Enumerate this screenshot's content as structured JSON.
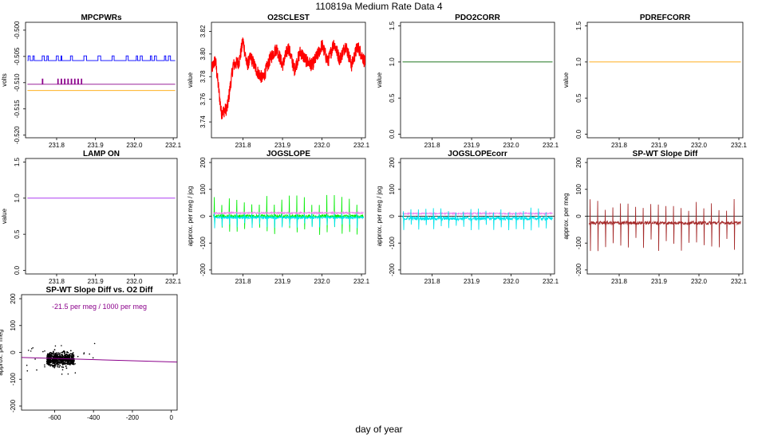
{
  "figure": {
    "title": "110819a   Medium Rate Data 4",
    "xlabel": "day of year"
  },
  "chart_data": [
    {
      "id": "mpcpwrs",
      "type": "line",
      "title": "MPCPWRs",
      "ylabel": "volts",
      "xlim": [
        231.72,
        232.11
      ],
      "ylim": [
        -0.5205,
        -0.4985
      ],
      "xticks": [
        "231.8",
        "231.9",
        "232.0",
        "232.1"
      ],
      "yticks": [
        "-0.500",
        "-0.505",
        "-0.510",
        "-0.515",
        "-0.520"
      ],
      "ytick_values": [
        -0.5,
        -0.505,
        -0.51,
        -0.515,
        -0.52
      ],
      "series": [
        {
          "color": "#0000ff",
          "base": -0.5058,
          "spike": -0.5049,
          "kind": "blocks",
          "x_from": 231.72,
          "x_to": 232.11
        },
        {
          "color": "#8b008b",
          "base": -0.5103,
          "spike": -0.5093,
          "kind": "ticks",
          "x_from": 231.72,
          "x_to": 232.11
        },
        {
          "color": "#ffa500",
          "base": -0.5115,
          "kind": "flat",
          "x_from": 231.72,
          "x_to": 232.11
        }
      ]
    },
    {
      "id": "o2sclest",
      "type": "line",
      "title": "O2SCLEST",
      "ylabel": "value",
      "xlim": [
        231.72,
        232.11
      ],
      "ylim": [
        3.726,
        3.828
      ],
      "xticks": [
        "231.8",
        "231.9",
        "232.0",
        "232.1"
      ],
      "yticks": [
        "3.74",
        "3.76",
        "3.78",
        "3.80",
        "3.82"
      ],
      "ytick_values": [
        3.74,
        3.76,
        3.78,
        3.8,
        3.82
      ],
      "series": [
        {
          "color": "#ff0000",
          "kind": "noisy",
          "x": [
            231.72,
            231.73,
            231.745,
            231.76,
            231.775,
            231.79,
            231.8,
            231.81,
            231.82,
            231.835,
            231.85,
            231.87,
            231.885,
            231.9,
            231.915,
            231.93,
            231.945,
            231.96,
            231.975,
            231.99,
            232.0,
            232.015,
            232.03,
            232.045,
            232.06,
            232.075,
            232.09,
            232.11
          ],
          "y": [
            3.786,
            3.795,
            3.748,
            3.752,
            3.79,
            3.793,
            3.812,
            3.79,
            3.797,
            3.785,
            3.778,
            3.797,
            3.805,
            3.79,
            3.806,
            3.786,
            3.802,
            3.794,
            3.79,
            3.8,
            3.808,
            3.793,
            3.81,
            3.795,
            3.808,
            3.79,
            3.807,
            3.792
          ]
        }
      ]
    },
    {
      "id": "pdo2corr",
      "type": "line",
      "title": "PDO2CORR",
      "ylabel": "value",
      "xlim": [
        231.72,
        232.11
      ],
      "ylim": [
        -0.05,
        1.55
      ],
      "xticks": [
        "231.8",
        "231.9",
        "232.0",
        "232.1"
      ],
      "yticks": [
        "0.0",
        "0.5",
        "1.0",
        "1.5"
      ],
      "ytick_values": [
        0,
        0.5,
        1.0,
        1.5
      ],
      "series": [
        {
          "color": "#006400",
          "kind": "flat",
          "base": 1.0,
          "x_from": 231.72,
          "x_to": 232.11
        }
      ]
    },
    {
      "id": "pdrefcorr",
      "type": "line",
      "title": "PDREFCORR",
      "ylabel": "value",
      "xlim": [
        231.72,
        232.11
      ],
      "ylim": [
        -0.05,
        1.55
      ],
      "xticks": [
        "231.8",
        "231.9",
        "232.0",
        "232.1"
      ],
      "yticks": [
        "0.0",
        "0.5",
        "1.0",
        "1.5"
      ],
      "ytick_values": [
        0,
        0.5,
        1.0,
        1.5
      ],
      "series": [
        {
          "color": "#ffa500",
          "kind": "flat",
          "base": 1.0,
          "x_from": 231.72,
          "x_to": 232.11
        }
      ]
    },
    {
      "id": "lampon",
      "type": "line",
      "title": "LAMP ON",
      "ylabel": "value",
      "xlim": [
        231.72,
        232.11
      ],
      "ylim": [
        -0.05,
        1.55
      ],
      "xticks": [
        "231.8",
        "231.9",
        "232.0",
        "232.1"
      ],
      "yticks": [
        "0.0",
        "0.5",
        "1.0",
        "1.5"
      ],
      "ytick_values": [
        0,
        0.5,
        1.0,
        1.5
      ],
      "series": [
        {
          "color": "#a020f0",
          "kind": "flat",
          "base": 1.0,
          "x_from": 231.72,
          "x_to": 232.11
        }
      ]
    },
    {
      "id": "jogslope",
      "type": "line",
      "title": "JOGSLOPE",
      "ylabel": "approx. per meg / jog",
      "xlim": [
        231.72,
        232.11
      ],
      "ylim": [
        -215,
        215
      ],
      "xticks": [
        "231.8",
        "231.9",
        "232.0",
        "232.1"
      ],
      "yticks": [
        "-200",
        "-100",
        "0",
        "100",
        "200"
      ],
      "ytick_values": [
        -200,
        -100,
        0,
        100,
        200
      ],
      "series": [
        {
          "color": "#00ee00",
          "kind": "spiky",
          "base": 0,
          "noise": 6,
          "spike_up": 80,
          "spike_down": -70
        },
        {
          "color": "#00e5ee",
          "kind": "spiky",
          "base": -5,
          "noise": 4,
          "spike_up": 20,
          "spike_down": -40
        },
        {
          "color": "#ee82ee",
          "kind": "noise",
          "base": 12,
          "noise": 3
        }
      ]
    },
    {
      "id": "jogslopecorr",
      "type": "line",
      "title": "JOGSLOPEcorr",
      "ylabel": "approx. per meg / jog",
      "xlim": [
        231.72,
        232.11
      ],
      "ylim": [
        -215,
        215
      ],
      "xticks": [
        "231.8",
        "231.9",
        "232.0",
        "232.1"
      ],
      "yticks": [
        "-200",
        "-100",
        "0",
        "100",
        "200"
      ],
      "ytick_values": [
        -200,
        -100,
        0,
        100,
        200
      ],
      "hline": 0,
      "series": [
        {
          "color": "#ee82ee",
          "kind": "noise",
          "base": 10,
          "noise": 3
        },
        {
          "color": "#00e5ee",
          "kind": "spiky",
          "base": -8,
          "noise": 7,
          "spike_up": 40,
          "spike_down": -45
        }
      ]
    },
    {
      "id": "spwt",
      "type": "line",
      "title": "SP-WT Slope Diff",
      "ylabel": "approx. per meg",
      "xlim": [
        231.72,
        232.11
      ],
      "ylim": [
        -215,
        215
      ],
      "xticks": [
        "231.8",
        "231.9",
        "232.0",
        "232.1"
      ],
      "yticks": [
        "-200",
        "-100",
        "0",
        "100",
        "200"
      ],
      "ytick_values": [
        -200,
        -100,
        0,
        100,
        200
      ],
      "hline": 0,
      "series": [
        {
          "color": "#a52a2a",
          "kind": "spiky",
          "base": -25,
          "noise": 6,
          "spike_up": 90,
          "spike_down": -110
        }
      ]
    },
    {
      "id": "scatter",
      "type": "scatter",
      "title": "SP-WT Slope Diff vs. O2 Diff",
      "ylabel": "approx. per meg",
      "xlim": [
        -770,
        30
      ],
      "ylim": [
        -215,
        215
      ],
      "xticks": [
        "-600",
        "-400",
        "-200",
        "0"
      ],
      "xtick_values": [
        -600,
        -400,
        -200,
        0
      ],
      "yticks": [
        "-200",
        "-100",
        "0",
        "100",
        "200"
      ],
      "ytick_values": [
        -200,
        -100,
        0,
        100,
        200
      ],
      "annotation": "-21.5 per meg / 1000 per meg",
      "annotation_color": "#8b008b",
      "fit": {
        "color": "#8b008b",
        "x": [
          -770,
          30
        ],
        "y": [
          -19,
          -36
        ]
      },
      "cluster": {
        "color": "#000000",
        "x_range": [
          -640,
          -500
        ],
        "center_y": -25,
        "spread_y": 18
      }
    }
  ]
}
